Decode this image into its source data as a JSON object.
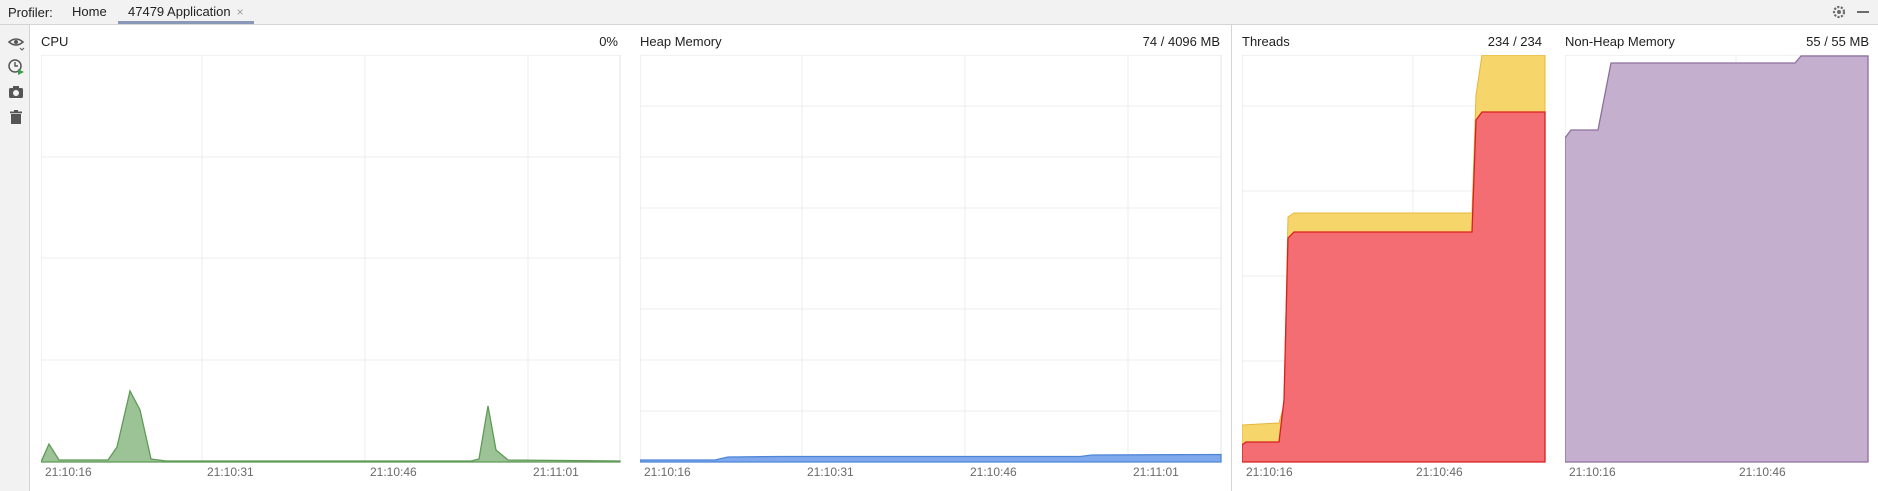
{
  "header": {
    "label": "Profiler:",
    "tabs": [
      {
        "label": "Home"
      },
      {
        "label": "47479 Application",
        "close": "×"
      }
    ]
  },
  "sidebar": {
    "icons": [
      "eye-icon",
      "clock-play-icon",
      "camera-icon",
      "trash-icon"
    ]
  },
  "panels": {
    "cpu": {
      "title": "CPU",
      "value": "0%",
      "ticks": [
        "21:10:16",
        "21:10:31",
        "21:10:46",
        "21:11:01"
      ],
      "color": "#5f9a57",
      "fill": "#8bb884"
    },
    "heap": {
      "title": "Heap Memory",
      "value": "74 / 4096 MB",
      "ticks": [
        "21:10:16",
        "21:10:31",
        "21:10:46",
        "21:11:01"
      ],
      "color": "#4f86d8",
      "fill": "#7fa9ec"
    },
    "threads": {
      "title": "Threads",
      "value": "234 / 234",
      "ticks": [
        "21:10:16",
        "21:10:46"
      ],
      "colors": {
        "total": "#f6d66a",
        "live": "#f36d72",
        "live_line": "#d92020",
        "total_line": "#e8b53a"
      }
    },
    "nonheap": {
      "title": "Non-Heap Memory",
      "value": "55 / 55 MB",
      "ticks": [
        "21:10:16",
        "21:10:46"
      ],
      "color": "#8d6f9e",
      "fill": "#c4afcf"
    }
  }
}
